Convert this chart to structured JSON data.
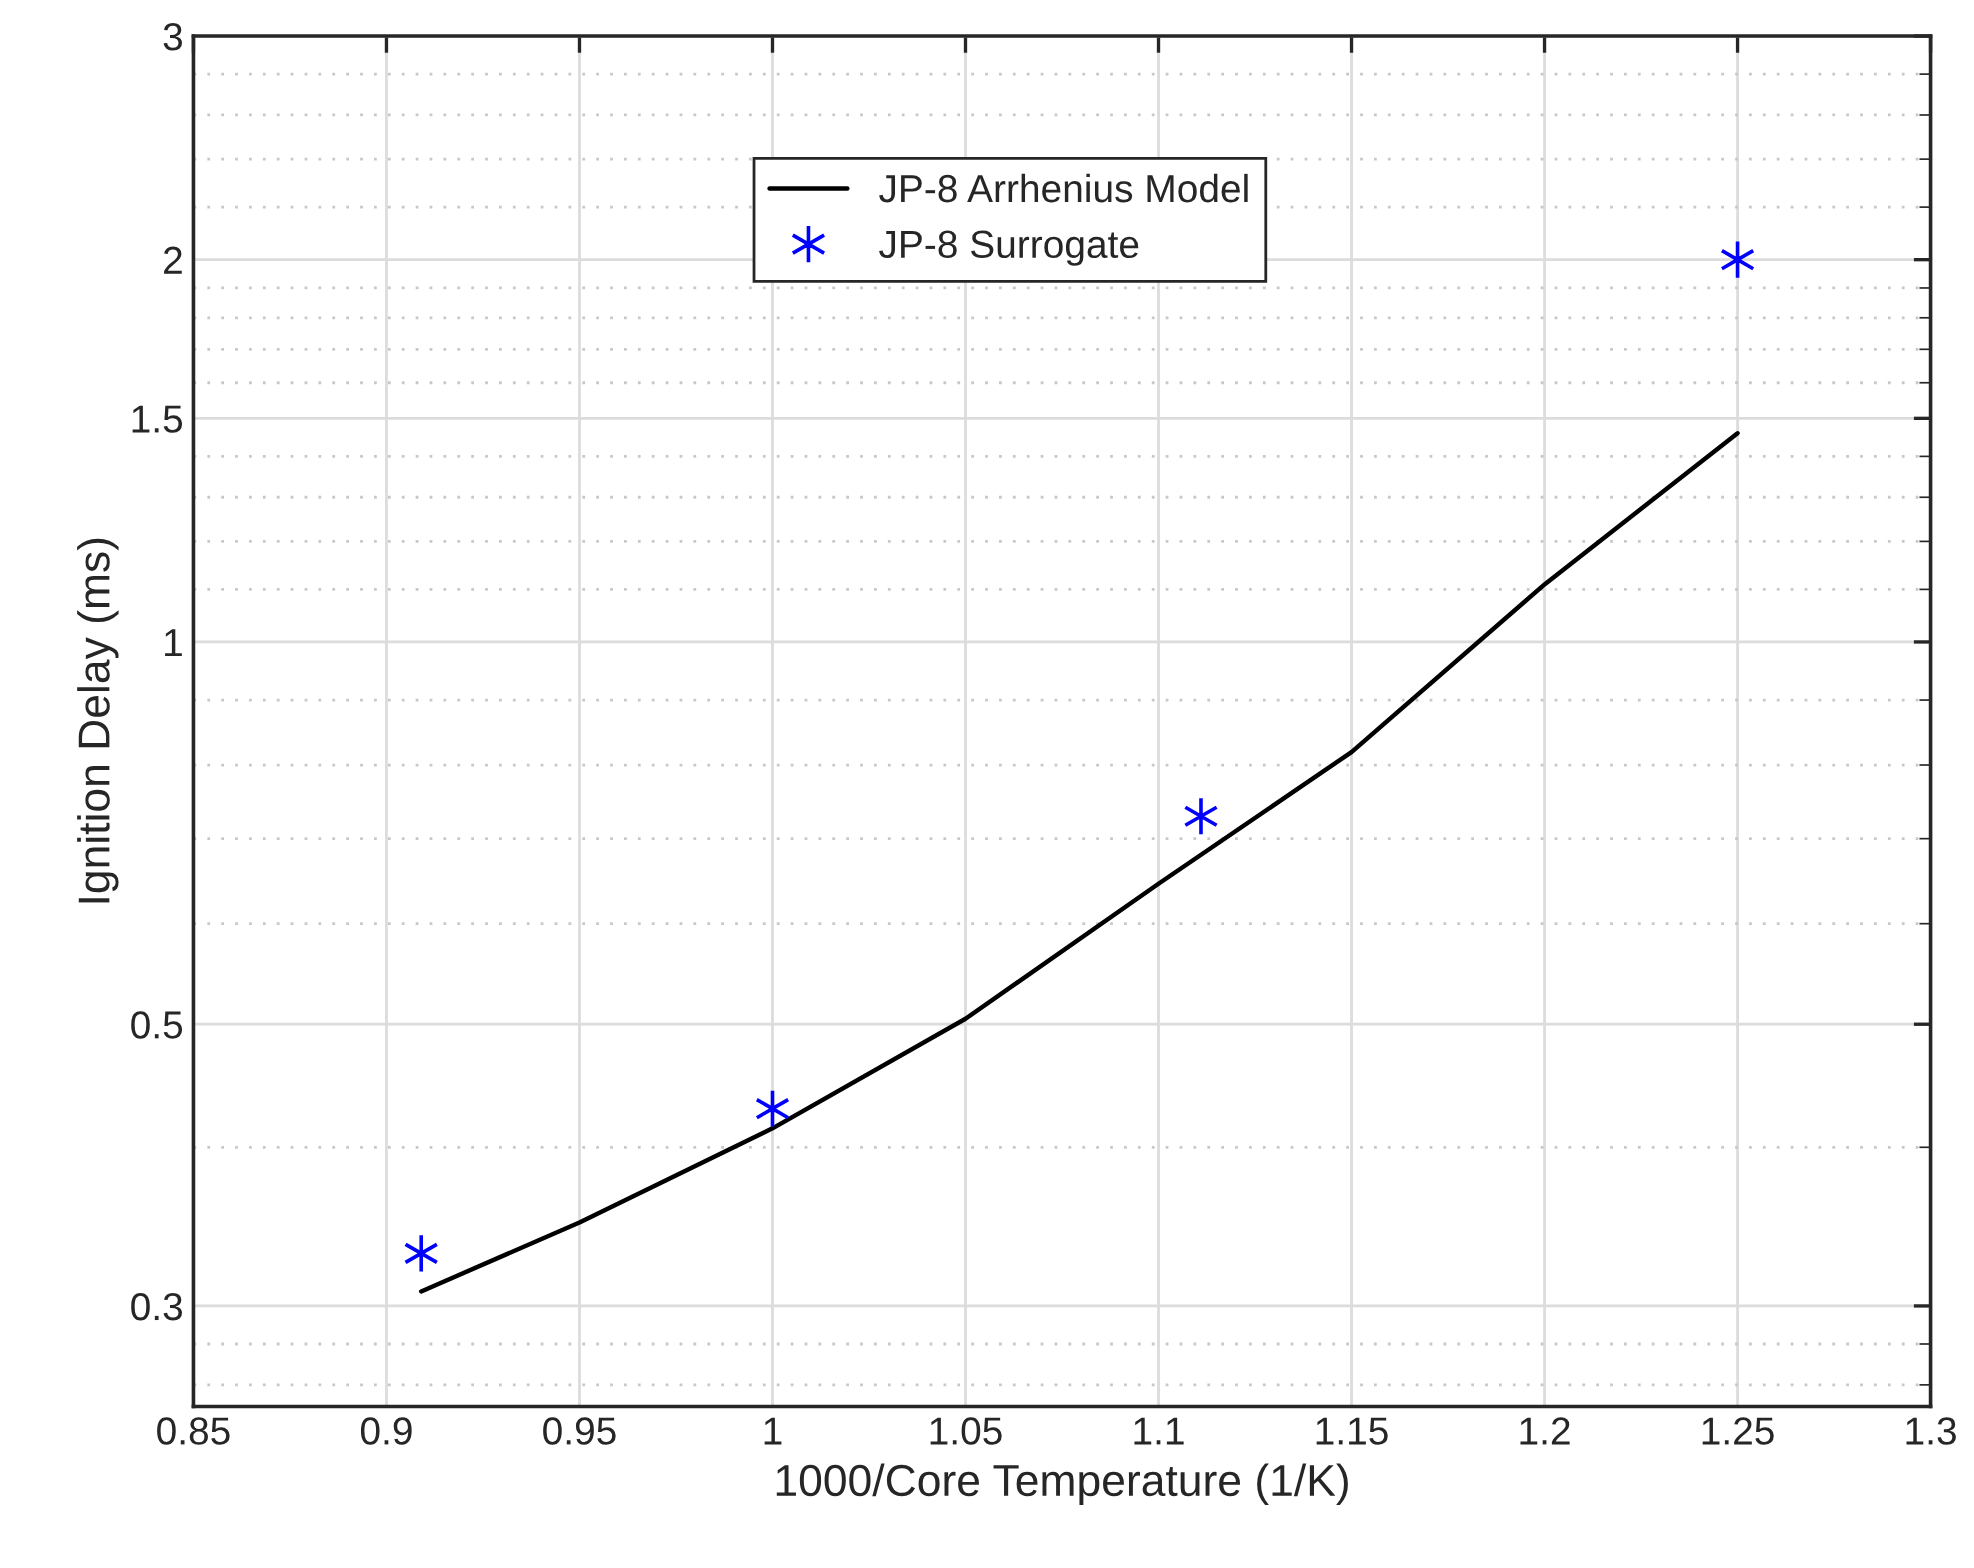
{
  "chart_data": {
    "type": "line",
    "xlabel": "1000/Core Temperature (1/K)",
    "ylabel": "Ignition Delay (ms)",
    "xlim": [
      0.85,
      1.3
    ],
    "xticks": [
      0.85,
      0.9,
      0.95,
      1,
      1.05,
      1.1,
      1.15,
      1.2,
      1.25,
      1.3
    ],
    "ylim": [
      0.25,
      3
    ],
    "yticks": [
      0.3,
      0.5,
      1,
      1.5,
      2,
      3
    ],
    "log": "y",
    "grid": true,
    "legend": "top",
    "series": [
      {
        "name": "JP-8 Arrhenius Model",
        "color": "#000000",
        "line_style": "solid",
        "marker": "none",
        "x": [
          0.909,
          0.95,
          1.0,
          1.05,
          1.1,
          1.15,
          1.2,
          1.25
        ],
        "values": [
          0.308,
          0.349,
          0.414,
          0.505,
          0.645,
          0.819,
          1.11,
          1.46
        ]
      },
      {
        "name": "JP-8 Surrogate",
        "type": "scatter",
        "color": "#0000ff",
        "marker": "cross",
        "x": [
          0.909,
          1.0,
          1.111,
          1.25
        ],
        "values": [
          0.33,
          0.429,
          0.729,
          2.0
        ]
      }
    ]
  }
}
